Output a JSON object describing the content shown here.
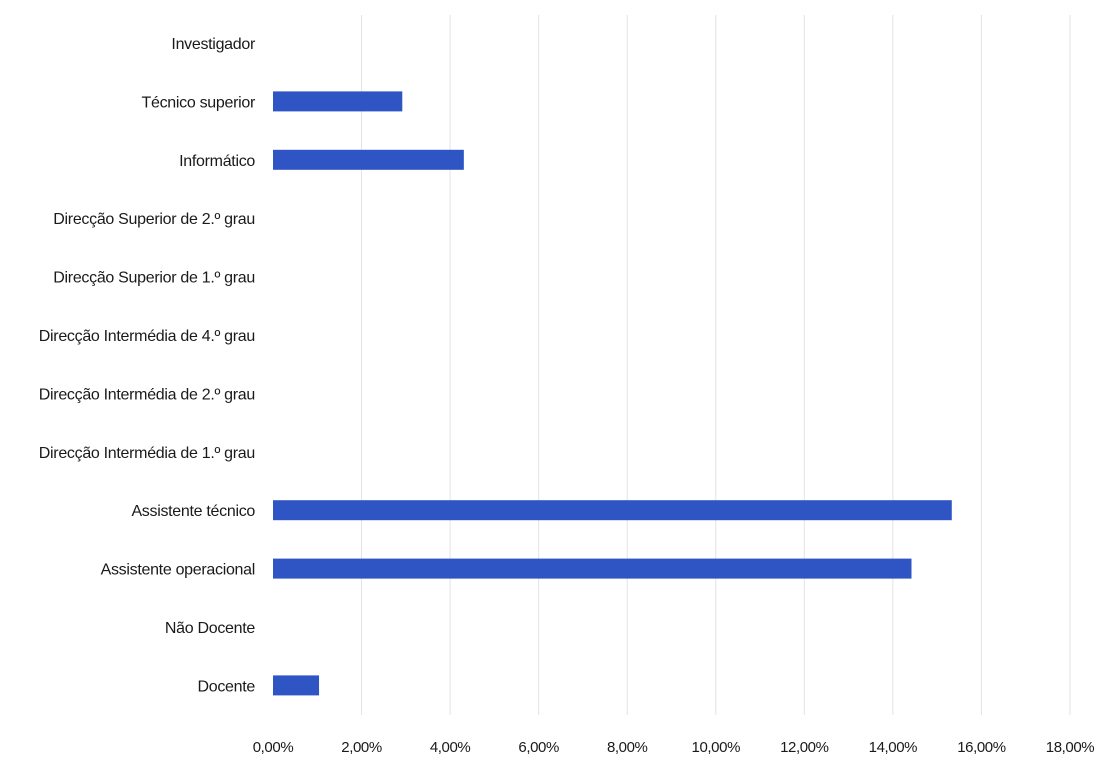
{
  "chart_data": {
    "type": "bar",
    "orientation": "horizontal",
    "categories": [
      "Investigador",
      "Técnico superior",
      "Informático",
      "Direcção Superior de 2.º grau",
      "Direcção Superior de 1.º grau",
      "Direcção Intermédia de 4.º grau",
      "Direcção Intermédia de 2.º grau",
      "Direcção Intermédia de 1.º grau",
      "Assistente técnico",
      "Assistente operacional",
      "Não Docente",
      "Docente"
    ],
    "values": [
      0,
      2.92,
      4.31,
      0,
      0,
      0,
      0,
      0,
      15.33,
      14.42,
      0,
      1.04
    ],
    "xlim": [
      0,
      18
    ],
    "ticks": [
      0,
      2,
      4,
      6,
      8,
      10,
      12,
      14,
      16,
      18
    ],
    "tick_labels": [
      "0,00%",
      "2,00%",
      "4,00%",
      "6,00%",
      "8,00%",
      "10,00%",
      "12,00%",
      "14,00%",
      "16,00%",
      "18,00%"
    ],
    "bar_color": "#2f54c4",
    "grid": true,
    "legend": "none",
    "title": "",
    "xlabel": "",
    "ylabel": ""
  }
}
